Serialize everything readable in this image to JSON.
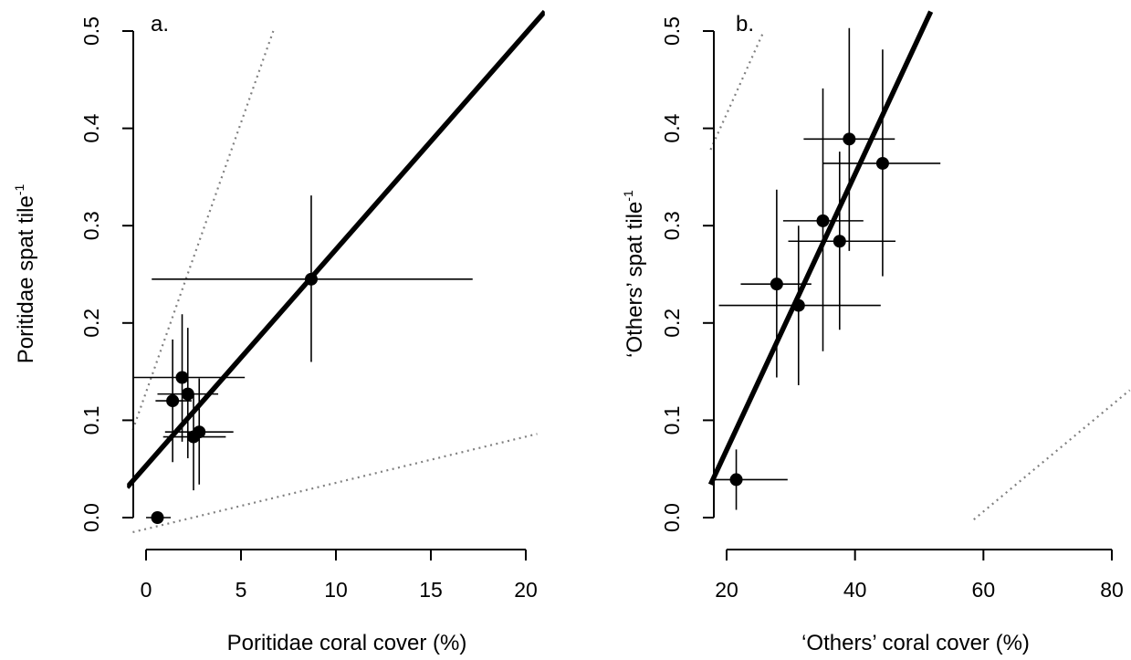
{
  "chart_data": [
    {
      "type": "scatter",
      "panel_label": "a.",
      "xlabel": "Poritidae coral cover (%)",
      "ylabel": "Poritidae spat tile",
      "ylabel_sup": "-1",
      "xlim": [
        -1,
        21
      ],
      "ylim": [
        0,
        0.5
      ],
      "xticks": [
        0,
        5,
        10,
        15,
        20
      ],
      "xtick_labels": [
        "0",
        "5",
        "10",
        "15",
        "20"
      ],
      "yticks": [
        0.0,
        0.1,
        0.2,
        0.3,
        0.4,
        0.5
      ],
      "ytick_labels": [
        "0.0",
        "0.1",
        "0.2",
        "0.3",
        "0.4",
        "0.5"
      ],
      "points": [
        {
          "x": 0.6,
          "y": 0.0,
          "x_lo": 0.0,
          "x_hi": 1.3,
          "y_lo": 0.0,
          "y_hi": 0.0
        },
        {
          "x": 1.4,
          "y": 0.12,
          "x_lo": 0.5,
          "x_hi": 2.4,
          "y_lo": 0.057,
          "y_hi": 0.183
        },
        {
          "x": 1.9,
          "y": 0.144,
          "x_lo": -0.7,
          "x_hi": 5.2,
          "y_lo": 0.078,
          "y_hi": 0.209
        },
        {
          "x": 2.2,
          "y": 0.127,
          "x_lo": 0.6,
          "x_hi": 3.8,
          "y_lo": 0.061,
          "y_hi": 0.195
        },
        {
          "x": 2.5,
          "y": 0.083,
          "x_lo": 0.9,
          "x_hi": 4.2,
          "y_lo": 0.028,
          "y_hi": 0.127
        },
        {
          "x": 2.8,
          "y": 0.088,
          "x_lo": 1.0,
          "x_hi": 4.6,
          "y_lo": 0.034,
          "y_hi": 0.143
        },
        {
          "x": 8.7,
          "y": 0.245,
          "x_lo": 0.3,
          "x_hi": 17.2,
          "y_lo": 0.16,
          "y_hi": 0.331
        }
      ],
      "fit_line": {
        "x": [
          -1,
          21
        ],
        "y": [
          0.031,
          0.52
        ]
      },
      "reference_lines": [
        {
          "x": [
            -0.7,
            6.7
          ],
          "y": [
            0.09,
            0.5
          ]
        },
        {
          "x": [
            -0.7,
            20.6
          ],
          "y": [
            -0.015,
            0.086
          ]
        }
      ]
    },
    {
      "type": "scatter",
      "panel_label": "b.",
      "xlabel": "‘Others’ coral cover (%)",
      "ylabel": "‘Others’ spat tile",
      "ylabel_sup": "-1",
      "xlim": [
        17,
        83
      ],
      "ylim": [
        0,
        0.5
      ],
      "xticks": [
        20,
        40,
        60,
        80
      ],
      "xtick_labels": [
        "20",
        "40",
        "60",
        "80"
      ],
      "yticks": [
        0.0,
        0.1,
        0.2,
        0.3,
        0.4,
        0.5
      ],
      "ytick_labels": [
        "0.0",
        "0.1",
        "0.2",
        "0.3",
        "0.4",
        "0.5"
      ],
      "points": [
        {
          "x": 21.5,
          "y": 0.039,
          "x_lo": 17.5,
          "x_hi": 29.5,
          "y_lo": 0.008,
          "y_hi": 0.07
        },
        {
          "x": 27.8,
          "y": 0.24,
          "x_lo": 22.2,
          "x_hi": 33.2,
          "y_lo": 0.144,
          "y_hi": 0.337
        },
        {
          "x": 31.2,
          "y": 0.218,
          "x_lo": 18.8,
          "x_hi": 44.0,
          "y_lo": 0.136,
          "y_hi": 0.3
        },
        {
          "x": 35.0,
          "y": 0.305,
          "x_lo": 28.8,
          "x_hi": 41.3,
          "y_lo": 0.171,
          "y_hi": 0.441
        },
        {
          "x": 37.6,
          "y": 0.284,
          "x_lo": 29.6,
          "x_hi": 46.3,
          "y_lo": 0.193,
          "y_hi": 0.376
        },
        {
          "x": 39.1,
          "y": 0.389,
          "x_lo": 32.0,
          "x_hi": 46.2,
          "y_lo": 0.274,
          "y_hi": 0.503
        },
        {
          "x": 44.3,
          "y": 0.364,
          "x_lo": 35.0,
          "x_hi": 53.3,
          "y_lo": 0.248,
          "y_hi": 0.481
        }
      ],
      "fit_line": {
        "x": [
          17.5,
          51.8
        ],
        "y": [
          0.034,
          0.52
        ]
      },
      "reference_lines": [
        {
          "x": [
            17.5,
            25.8
          ],
          "y": [
            0.378,
            0.5
          ]
        },
        {
          "x": [
            58.5,
            82.8
          ],
          "y": [
            -0.002,
            0.131
          ]
        }
      ]
    }
  ]
}
